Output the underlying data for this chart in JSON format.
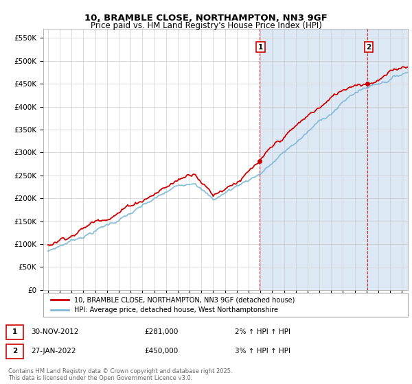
{
  "title": "10, BRAMBLE CLOSE, NORTHAMPTON, NN3 9GF",
  "subtitle": "Price paid vs. HM Land Registry's House Price Index (HPI)",
  "ylabel_ticks": [
    "£0",
    "£50K",
    "£100K",
    "£150K",
    "£200K",
    "£250K",
    "£300K",
    "£350K",
    "£400K",
    "£450K",
    "£500K",
    "£550K"
  ],
  "ytick_values": [
    0,
    50000,
    100000,
    150000,
    200000,
    250000,
    300000,
    350000,
    400000,
    450000,
    500000,
    550000
  ],
  "ylim": [
    0,
    570000
  ],
  "x_start_year": 1995,
  "x_end_year": 2026,
  "sale1_year": 2012.92,
  "sale1_price": 281000,
  "sale1_label": "1",
  "sale1_date": "30-NOV-2012",
  "sale1_pct": "2%",
  "sale2_year": 2022.08,
  "sale2_price": 450000,
  "sale2_label": "2",
  "sale2_date": "27-JAN-2022",
  "sale2_pct": "3%",
  "hpi_color": "#7eb8d4",
  "price_color": "#cc0000",
  "vline_color": "#cc0000",
  "shade_color": "#dce9f5",
  "background_color": "#ffffff",
  "legend_label_red": "10, BRAMBLE CLOSE, NORTHAMPTON, NN3 9GF (detached house)",
  "legend_label_blue": "HPI: Average price, detached house, West Northamptonshire",
  "footer_line1": "Contains HM Land Registry data © Crown copyright and database right 2025.",
  "footer_line2": "This data is licensed under the Open Government Licence v3.0."
}
